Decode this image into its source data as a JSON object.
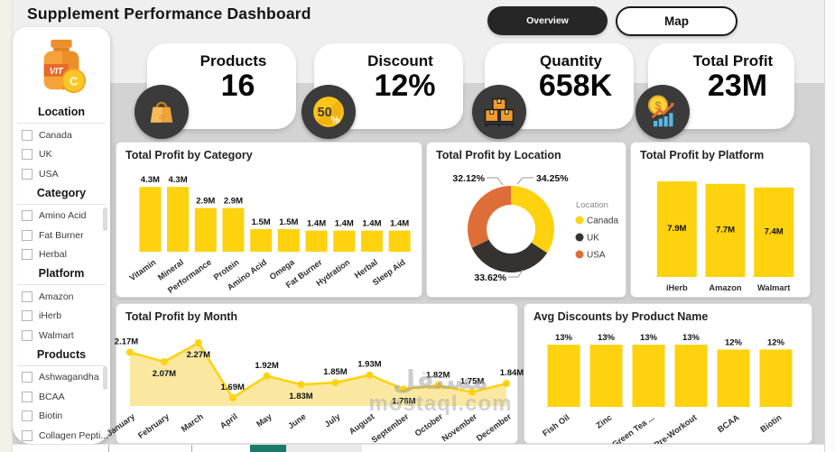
{
  "header": {
    "title": "Supplement Performance Dashboard",
    "nav": [
      {
        "label": "Overview",
        "active": true
      },
      {
        "label": "Map",
        "active": false
      }
    ]
  },
  "sidebar": {
    "logo": {
      "bottle_text": "VIT",
      "coin_text": "C"
    },
    "sections": [
      {
        "title": "Location",
        "items": [
          "Canada",
          "UK",
          "USA"
        ]
      },
      {
        "title": "Category",
        "items": [
          "Amino Acid",
          "Fat Burner",
          "Herbal"
        ]
      },
      {
        "title": "Platform",
        "items": [
          "Amazon",
          "iHerb",
          "Walmart"
        ]
      },
      {
        "title": "Products",
        "items": [
          "Ashwagandha",
          "BCAA",
          "Biotin",
          "Collagen Pepti..."
        ]
      }
    ]
  },
  "kpis": [
    {
      "label": "Products",
      "value": "16",
      "icon": "shopping-bag-icon"
    },
    {
      "label": "Discount",
      "value": "12%",
      "icon": "discount-badge-icon",
      "badge": "50%"
    },
    {
      "label": "Quantity",
      "value": "658K",
      "icon": "boxes-icon"
    },
    {
      "label": "Total Profit",
      "value": "23M",
      "icon": "coin-chart-icon"
    }
  ],
  "chart_data": [
    {
      "id": "category",
      "type": "bar",
      "title": "Total Profit by Category",
      "categories": [
        "Vitamin",
        "Mineral",
        "Performance",
        "Protein",
        "Amino Acid",
        "Omega",
        "Fat Burner",
        "Hydration",
        "Herbal",
        "Sleep Aid"
      ],
      "values": [
        4.3,
        4.3,
        2.9,
        2.9,
        1.5,
        1.5,
        1.4,
        1.4,
        1.4,
        1.4
      ],
      "labels": [
        "4.3M",
        "4.3M",
        "2.9M",
        "2.9M",
        "1.5M",
        "1.5M",
        "1.4M",
        "1.4M",
        "1.4M",
        "1.4M"
      ],
      "unit": "M",
      "legend": false,
      "grid": false
    },
    {
      "id": "location",
      "type": "pie",
      "variant": "donut",
      "title": "Total Profit by Location",
      "legend_title": "Location",
      "legend_position": "right",
      "slices": [
        {
          "name": "Canada",
          "value": 34.25,
          "label": "34.25%",
          "color": "#FFD20F"
        },
        {
          "name": "UK",
          "value": 33.62,
          "label": "33.62%",
          "color": "#363230"
        },
        {
          "name": "USA",
          "value": 32.12,
          "label": "32.12%",
          "color": "#DE6E38"
        }
      ]
    },
    {
      "id": "platform",
      "type": "bar",
      "title": "Total Profit by Platform",
      "categories": [
        "iHerb",
        "Amazon",
        "Walmart"
      ],
      "values": [
        7.9,
        7.7,
        7.4
      ],
      "labels": [
        "7.9M",
        "7.7M",
        "7.4M"
      ],
      "unit": "M",
      "value_label_position": "inside",
      "grid": false
    },
    {
      "id": "month",
      "type": "area",
      "title": "Total Profit by Month",
      "categories": [
        "January",
        "February",
        "March",
        "April",
        "May",
        "June",
        "July",
        "August",
        "September",
        "October",
        "November",
        "December"
      ],
      "values": [
        2.17,
        2.07,
        2.27,
        1.69,
        1.92,
        1.83,
        1.85,
        1.93,
        1.78,
        1.82,
        1.75,
        1.84
      ],
      "labels": [
        "2.17M",
        "2.07M",
        "2.27M",
        "1.69M",
        "1.92M",
        "1.83M",
        "1.85M",
        "1.93M",
        "1.78M",
        "1.82M",
        "1.75M",
        "1.84M"
      ],
      "label_pos": [
        "above",
        "below",
        "below",
        "above",
        "above",
        "below",
        "above",
        "above",
        "below",
        "above",
        "above",
        "above"
      ],
      "unit": "M",
      "markers": true,
      "grid": false
    },
    {
      "id": "discounts",
      "type": "bar",
      "title": "Avg Discounts by Product Name",
      "categories": [
        "Fish Oil",
        "Zinc",
        "Green Tea ...",
        "Pre-Workout",
        "BCAA",
        "Biotin"
      ],
      "values": [
        13,
        13,
        13,
        13,
        12,
        12
      ],
      "labels": [
        "13%",
        "13%",
        "13%",
        "13%",
        "12%",
        "12%"
      ],
      "unit": "%",
      "grid": false
    }
  ],
  "colors": {
    "yellow": "#FFD20F",
    "area_fill": "#FAE8A0",
    "orange": "#DE6E38",
    "dark": "#363230",
    "icon_circle": "#3B3B3B",
    "icon_orange": "#F2A23C",
    "teal_scrollbar": "#1A7A68",
    "canvas_gray": "#D3D3D3"
  },
  "watermark": {
    "line1": "مستقل",
    "line2": "mostaql.com"
  }
}
